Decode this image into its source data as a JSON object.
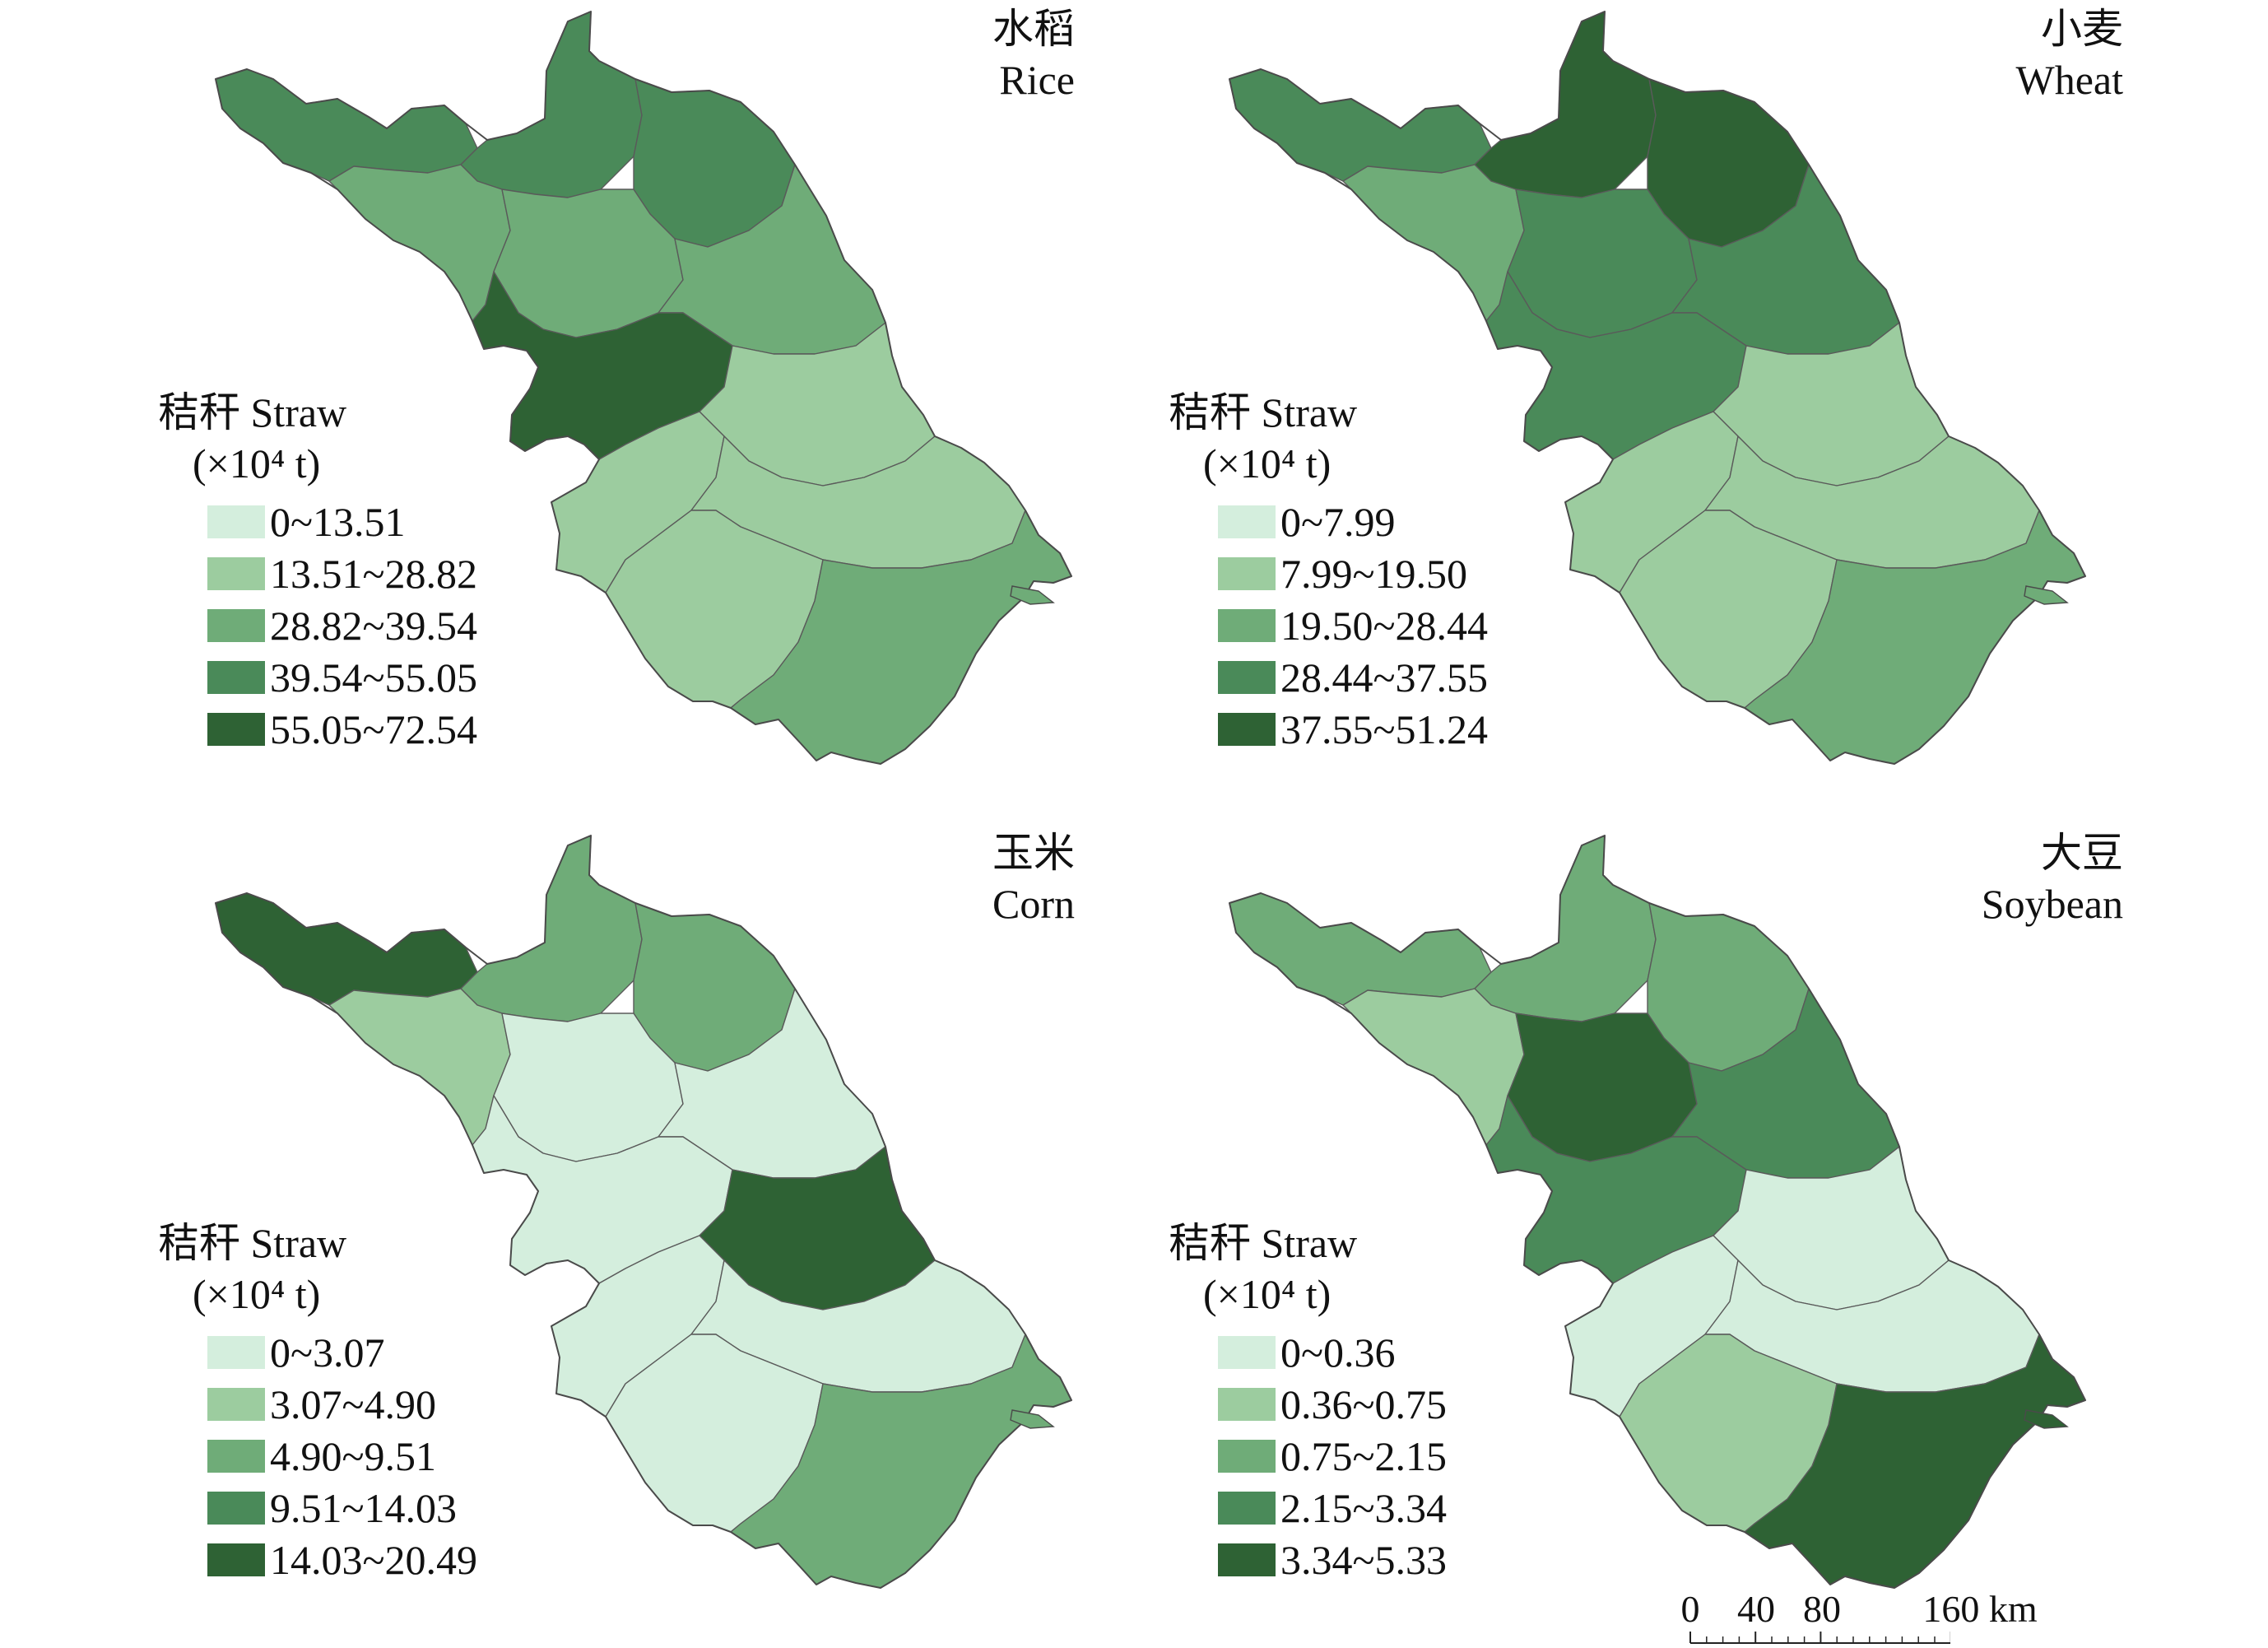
{
  "panels": [
    {
      "id": "rice",
      "title_zh": "水稻",
      "title_en": "Rice",
      "legend_title": "秸秆 Straw",
      "legend_unit": "(×10⁴ t)",
      "classes": [
        {
          "label": "0~13.51",
          "color": "#d4eedd"
        },
        {
          "label": "13.51~28.82",
          "color": "#9ccc9f"
        },
        {
          "label": "28.82~39.54",
          "color": "#6fac78"
        },
        {
          "label": "39.54~55.05",
          "color": "#4a8a59"
        },
        {
          "label": "55.05~72.54",
          "color": "#2e6234"
        }
      ],
      "pattern": [
        3,
        3,
        3,
        2,
        2,
        2,
        4,
        1,
        1,
        1,
        1,
        2
      ]
    },
    {
      "id": "wheat",
      "title_zh": "小麦",
      "title_en": "Wheat",
      "legend_title": "秸秆 Straw",
      "legend_unit": "(×10⁴ t)",
      "classes": [
        {
          "label": "0~7.99",
          "color": "#d4eedd"
        },
        {
          "label": "7.99~19.50",
          "color": "#9ccc9f"
        },
        {
          "label": "19.50~28.44",
          "color": "#6fac78"
        },
        {
          "label": "28.44~37.55",
          "color": "#4a8a59"
        },
        {
          "label": "37.55~51.24",
          "color": "#2e6234"
        }
      ],
      "pattern": [
        3,
        4,
        4,
        2,
        3,
        3,
        3,
        1,
        1,
        1,
        1,
        2
      ]
    },
    {
      "id": "corn",
      "title_zh": "玉米",
      "title_en": "Corn",
      "legend_title": "秸秆 Straw",
      "legend_unit": "(×10⁴ t)",
      "classes": [
        {
          "label": "0~3.07",
          "color": "#d4eedd"
        },
        {
          "label": "3.07~4.90",
          "color": "#9ccc9f"
        },
        {
          "label": "4.90~9.51",
          "color": "#6fac78"
        },
        {
          "label": "9.51~14.03",
          "color": "#4a8a59"
        },
        {
          "label": "14.03~20.49",
          "color": "#2e6234"
        }
      ],
      "pattern": [
        4,
        2,
        2,
        1,
        0,
        0,
        0,
        4,
        0,
        0,
        0,
        2
      ]
    },
    {
      "id": "soybean",
      "title_zh": "大豆",
      "title_en": "Soybean",
      "legend_title": "秸秆 Straw",
      "legend_unit": "(×10⁴ t)",
      "classes": [
        {
          "label": "0~0.36",
          "color": "#d4eedd"
        },
        {
          "label": "0.36~0.75",
          "color": "#9ccc9f"
        },
        {
          "label": "0.75~2.15",
          "color": "#6fac78"
        },
        {
          "label": "2.15~3.34",
          "color": "#4a8a59"
        },
        {
          "label": "3.34~5.33",
          "color": "#2e6234"
        }
      ],
      "pattern": [
        2,
        2,
        2,
        1,
        4,
        3,
        3,
        0,
        0,
        0,
        1,
        4
      ]
    }
  ],
  "scale_bar": {
    "labels": [
      "0",
      "40",
      "80",
      "160 km"
    ],
    "distances_km": [
      0,
      40,
      80,
      160
    ]
  }
}
